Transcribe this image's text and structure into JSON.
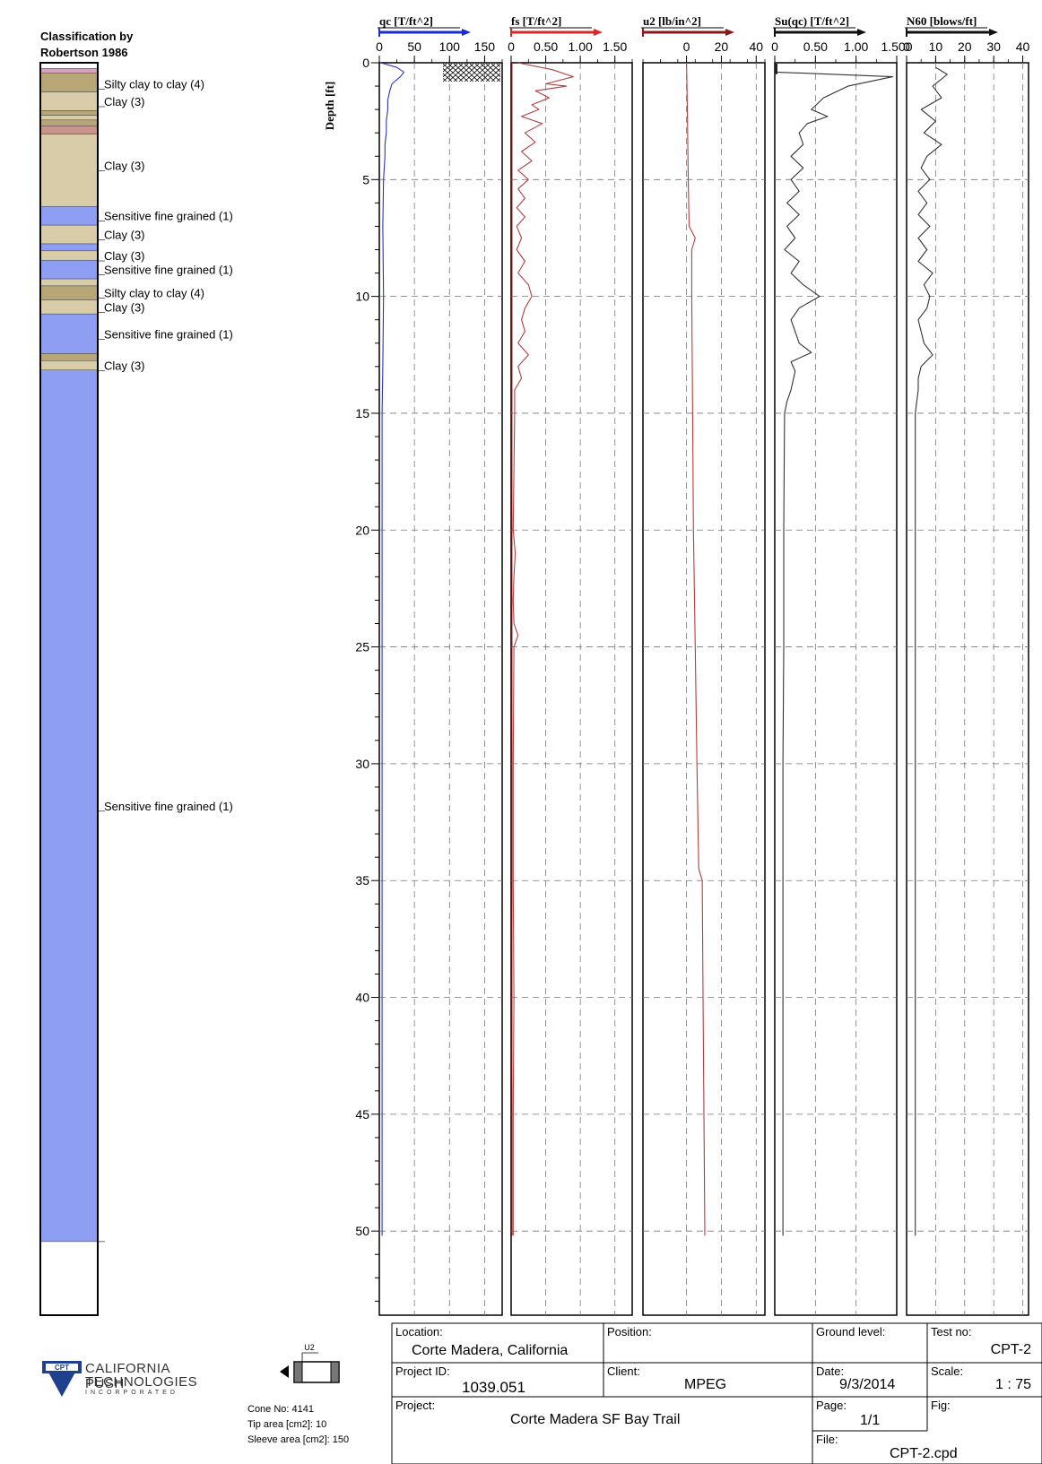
{
  "classification": {
    "title_line1": "Classification by",
    "title_line2": "Robertson 1986",
    "colors": {
      "1": "#8e9ef3",
      "3": "#d9cca8",
      "4": "#b8a776",
      "5": "#c9948a",
      "pink": "#d9a0c0",
      "empty": "#ffffff"
    },
    "layers": [
      {
        "top": 0.0,
        "bottom": 0.25,
        "zone": "empty"
      },
      {
        "top": 0.25,
        "bottom": 0.45,
        "zone": "pink"
      },
      {
        "top": 0.45,
        "bottom": 1.25,
        "zone": "4"
      },
      {
        "top": 1.25,
        "bottom": 2.05,
        "zone": "3"
      },
      {
        "top": 2.05,
        "bottom": 2.25,
        "zone": "4"
      },
      {
        "top": 2.25,
        "bottom": 2.45,
        "zone": "3"
      },
      {
        "top": 2.45,
        "bottom": 2.7,
        "zone": "4"
      },
      {
        "top": 2.7,
        "bottom": 3.05,
        "zone": "5"
      },
      {
        "top": 3.05,
        "bottom": 6.15,
        "zone": "3"
      },
      {
        "top": 6.15,
        "bottom": 6.95,
        "zone": "1"
      },
      {
        "top": 6.95,
        "bottom": 7.75,
        "zone": "3"
      },
      {
        "top": 7.75,
        "bottom": 8.05,
        "zone": "1"
      },
      {
        "top": 8.05,
        "bottom": 8.45,
        "zone": "3"
      },
      {
        "top": 8.45,
        "bottom": 9.25,
        "zone": "1"
      },
      {
        "top": 9.25,
        "bottom": 9.55,
        "zone": "3"
      },
      {
        "top": 9.55,
        "bottom": 10.15,
        "zone": "4"
      },
      {
        "top": 10.15,
        "bottom": 10.75,
        "zone": "3"
      },
      {
        "top": 10.75,
        "bottom": 12.45,
        "zone": "1"
      },
      {
        "top": 12.45,
        "bottom": 12.75,
        "zone": "4"
      },
      {
        "top": 12.75,
        "bottom": 13.15,
        "zone": "3"
      },
      {
        "top": 13.15,
        "bottom": 50.45,
        "zone": "1"
      },
      {
        "top": 50.45,
        "bottom": 53.6,
        "zone": "empty"
      }
    ],
    "labels": [
      {
        "depth": 0.9,
        "text": "Silty clay to clay (4)"
      },
      {
        "depth": 1.65,
        "text": "Clay (3)"
      },
      {
        "depth": 4.4,
        "text": "Clay (3)"
      },
      {
        "depth": 6.55,
        "text": "Sensitive fine grained (1)"
      },
      {
        "depth": 7.35,
        "text": "Clay (3)"
      },
      {
        "depth": 8.25,
        "text": "Clay (3)"
      },
      {
        "depth": 8.85,
        "text": "Sensitive fine grained (1)"
      },
      {
        "depth": 9.85,
        "text": "Silty clay to clay (4)"
      },
      {
        "depth": 10.45,
        "text": "Clay (3)"
      },
      {
        "depth": 11.6,
        "text": "Sensitive fine grained (1)"
      },
      {
        "depth": 12.95,
        "text": "Clay (3)"
      },
      {
        "depth": 31.8,
        "text": "Sensitive fine grained (1)"
      }
    ]
  },
  "chart_data": {
    "type": "line",
    "ylabel": "Depth [ft]",
    "ylim": [
      0,
      53.6
    ],
    "yticks": [
      0,
      5,
      10,
      15,
      20,
      25,
      30,
      35,
      40,
      45,
      50
    ],
    "grid": true,
    "panels": [
      {
        "title": "qc [T/ft^2]",
        "arrow_color": "#1a2ad6",
        "line_color": "#2a36b8",
        "xlim": [
          0,
          175
        ],
        "xticks": [
          0,
          50,
          100,
          150
        ],
        "xtick_labels": [
          "0",
          "50",
          "100",
          "150"
        ],
        "depth": [
          0,
          0.2,
          0.4,
          0.6,
          0.9,
          1.2,
          1.6,
          2.0,
          2.5,
          3.0,
          3.5,
          4.0,
          5.0,
          7.0,
          10.0,
          13.0,
          15.0,
          20.0,
          25.0,
          30.0,
          35.0,
          40.0,
          45.0,
          50.2
        ],
        "values": [
          2,
          25,
          35,
          30,
          18,
          15,
          12,
          12,
          10,
          10,
          8,
          8,
          6,
          5,
          6,
          5,
          4,
          4,
          4,
          4,
          4,
          4,
          4,
          4
        ]
      },
      {
        "title": "fs [T/ft^2]",
        "arrow_color": "#d42a2a",
        "line_color": "#b04040",
        "xlim": [
          0,
          1.75
        ],
        "xticks": [
          0,
          0.5,
          1.0,
          1.5
        ],
        "xtick_labels": [
          "0",
          "0.50",
          "1.00",
          "1.50"
        ],
        "depth": [
          0,
          0.3,
          0.6,
          0.9,
          1.0,
          1.2,
          1.5,
          1.8,
          2.0,
          2.3,
          2.6,
          3.0,
          3.4,
          3.8,
          4.2,
          4.6,
          5.0,
          5.4,
          5.8,
          6.2,
          6.6,
          7.0,
          7.5,
          8.0,
          8.5,
          9.0,
          9.5,
          10.0,
          10.5,
          11.0,
          11.5,
          12.0,
          12.5,
          13.0,
          13.5,
          14.0,
          15.0,
          20.0,
          21.0,
          22.0,
          23.0,
          24.0,
          24.5,
          25.0,
          30.0,
          35.0,
          40.0,
          45.0,
          50.2
        ],
        "values": [
          0.1,
          0.6,
          0.9,
          0.5,
          0.8,
          0.35,
          0.55,
          0.3,
          0.4,
          0.15,
          0.45,
          0.2,
          0.35,
          0.15,
          0.3,
          0.1,
          0.25,
          0.1,
          0.2,
          0.08,
          0.2,
          0.08,
          0.15,
          0.08,
          0.2,
          0.1,
          0.25,
          0.3,
          0.2,
          0.15,
          0.2,
          0.1,
          0.25,
          0.1,
          0.15,
          0.05,
          0.05,
          0.03,
          0.06,
          0.04,
          0.03,
          0.04,
          0.1,
          0.04,
          0.03,
          0.03,
          0.04,
          0.03,
          0.03
        ]
      },
      {
        "title": "u2 [lb/in^2]",
        "arrow_color": "#8a1a1a",
        "line_color": "#b04040",
        "xlim": [
          -25,
          45
        ],
        "xticks": [
          0,
          20,
          40
        ],
        "xtick_labels": [
          "0",
          "20",
          "40"
        ],
        "depth": [
          0,
          2,
          5,
          7,
          7.5,
          8,
          10,
          15,
          20,
          25,
          30,
          34.5,
          35,
          40,
          45,
          50.2
        ],
        "values": [
          0,
          0.5,
          1,
          1.5,
          5,
          3,
          3,
          3.5,
          4,
          5,
          6,
          7,
          9,
          9.5,
          10,
          10.5
        ]
      },
      {
        "title": "Su(qc) [T/ft^2]",
        "arrow_color": "#111111",
        "line_color": "#333333",
        "xlim": [
          0,
          1.5
        ],
        "xticks": [
          0,
          0.5,
          1.0,
          1.5
        ],
        "xtick_labels": [
          "0",
          "0.50",
          "1.00",
          "1.500"
        ],
        "depth": [
          0.2,
          0.4,
          0.6,
          1.0,
          1.5,
          2.0,
          2.3,
          2.6,
          3.0,
          3.5,
          4.0,
          4.5,
          5.0,
          5.5,
          6.0,
          6.5,
          7.0,
          7.5,
          8.0,
          8.5,
          9.0,
          9.5,
          10.0,
          10.5,
          11.0,
          11.5,
          12.0,
          12.4,
          12.8,
          13.2,
          14.0,
          14.5,
          15.0,
          20.0,
          25.0,
          30.0,
          35.0,
          40.0,
          45.0,
          50.2
        ],
        "values": [
          0.01,
          0.01,
          1.45,
          0.9,
          0.6,
          0.45,
          0.65,
          0.4,
          0.3,
          0.35,
          0.2,
          0.35,
          0.2,
          0.3,
          0.15,
          0.3,
          0.15,
          0.25,
          0.12,
          0.3,
          0.2,
          0.35,
          0.55,
          0.3,
          0.2,
          0.25,
          0.3,
          0.45,
          0.2,
          0.25,
          0.2,
          0.15,
          0.12,
          0.11,
          0.11,
          0.1,
          0.1,
          0.1,
          0.1,
          0.1
        ]
      },
      {
        "title": "N60 [blows/ft]",
        "arrow_color": "#111111",
        "line_color": "#333333",
        "xlim": [
          0,
          42
        ],
        "xticks": [
          0,
          10,
          20,
          30,
          40
        ],
        "xtick_labels": [
          "0",
          "10",
          "20",
          "30",
          "40"
        ],
        "depth": [
          0.2,
          0.5,
          1.0,
          1.5,
          2.0,
          2.5,
          3.0,
          3.5,
          4.0,
          4.5,
          5.0,
          5.5,
          6.0,
          6.5,
          7.0,
          7.5,
          8.0,
          8.5,
          9.0,
          9.5,
          10.0,
          10.5,
          11.0,
          11.5,
          12.0,
          12.5,
          13.0,
          13.5,
          14.0,
          15.0,
          20.0,
          25.0,
          30.0,
          35.0,
          40.0,
          45.0,
          50.2
        ],
        "values": [
          10,
          14,
          9,
          12,
          5,
          10,
          6,
          12,
          7,
          5,
          8,
          4,
          7,
          4,
          8,
          4,
          7,
          4,
          9,
          6,
          8,
          7,
          4,
          5,
          6,
          9,
          5,
          4,
          4,
          3,
          3,
          3,
          3,
          3,
          3,
          3,
          3
        ]
      }
    ]
  },
  "cone": {
    "u2_label": "U2",
    "cone_no": "Cone No: 4141",
    "tip_area": "Tip area [cm2]: 10",
    "sleeve_area": "Sleeve area [cm2]: 150"
  },
  "logo": {
    "badge": "CPT",
    "line1": "CALIFORNIA PUSH",
    "line2": "TECHNOLOGIES",
    "line3": "INCORPORATED"
  },
  "title_block": {
    "location_label": "Location:",
    "location_value": "Corte Madera, California",
    "position_label": "Position:",
    "position_value": "",
    "ground_level_label": "Ground level:",
    "ground_level_value": "",
    "test_no_label": "Test no:",
    "test_no_value": "CPT-2",
    "project_id_label": "Project ID:",
    "project_id_value": "1039.051",
    "client_label": "Client:",
    "client_value": "MPEG",
    "date_label": "Date:",
    "date_value": "9/3/2014",
    "scale_label": "Scale:",
    "scale_value": "1 : 75",
    "project_label": "Project:",
    "project_value": "Corte Madera SF Bay Trail",
    "page_label": "Page:",
    "page_value": "1/1",
    "fig_label": "Fig:",
    "fig_value": "",
    "file_label": "File:",
    "file_value": "CPT-2.cpd"
  }
}
